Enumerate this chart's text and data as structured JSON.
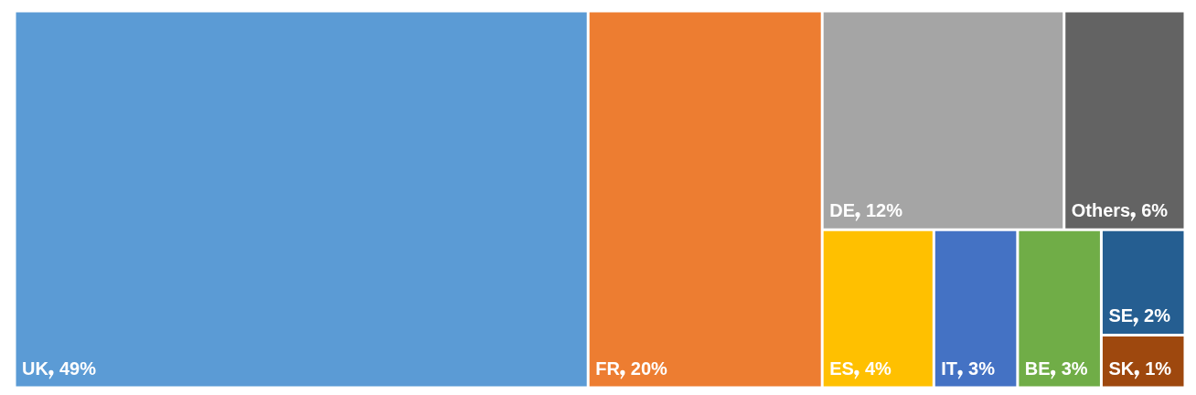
{
  "chart_data": {
    "type": "other",
    "categories": [
      "UK",
      "FR",
      "DE",
      "Others",
      "ES",
      "IT",
      "BE",
      "SE",
      "SK"
    ],
    "values": [
      49,
      20,
      12,
      6,
      4,
      3,
      3,
      2,
      1
    ],
    "value_labels": [
      "49%",
      "20%",
      "12%",
      "6%",
      "4%",
      "3%",
      "3%",
      "2%",
      "1%"
    ],
    "colors": [
      "#5b9bd5",
      "#ed7d31",
      "#a5a5a5",
      "#636363",
      "#ffc000",
      "#4472c4",
      "#70ad47",
      "#255e91",
      "#9e480e"
    ]
  }
}
